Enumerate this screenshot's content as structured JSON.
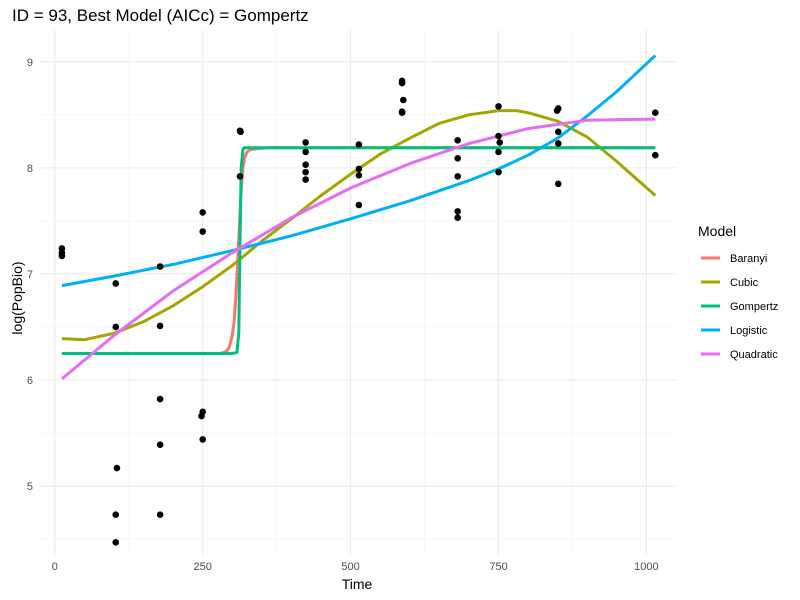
{
  "chart_data": {
    "type": "scatter",
    "title": "ID = 93, Best Model (AICc) = Gompertz",
    "xlabel": "Time",
    "ylabel": "log(PopBio)",
    "xlim": [
      -25,
      1050
    ],
    "ylim": [
      4.35,
      9.3
    ],
    "xticks": [
      0,
      250,
      500,
      750,
      1000
    ],
    "xtick_labels": [
      "0",
      "250",
      "500",
      "750",
      "1000"
    ],
    "yticks": [
      5,
      6,
      7,
      8,
      9
    ],
    "ytick_labels": [
      "5",
      "6",
      "7",
      "8",
      "9"
    ],
    "grid": true,
    "legend": {
      "title": "Model",
      "position": "right"
    },
    "points": [
      {
        "x": 12,
        "y": 7.24
      },
      {
        "x": 12,
        "y": 7.2
      },
      {
        "x": 12,
        "y": 7.17
      },
      {
        "x": 103,
        "y": 6.91
      },
      {
        "x": 103,
        "y": 6.5
      },
      {
        "x": 105,
        "y": 5.17
      },
      {
        "x": 103,
        "y": 4.73
      },
      {
        "x": 103,
        "y": 4.47
      },
      {
        "x": 178,
        "y": 7.07
      },
      {
        "x": 178,
        "y": 6.51
      },
      {
        "x": 178,
        "y": 5.82
      },
      {
        "x": 178,
        "y": 5.39
      },
      {
        "x": 178,
        "y": 4.73
      },
      {
        "x": 250,
        "y": 7.58
      },
      {
        "x": 250,
        "y": 7.4
      },
      {
        "x": 250,
        "y": 5.7
      },
      {
        "x": 248,
        "y": 5.66
      },
      {
        "x": 250,
        "y": 5.44
      },
      {
        "x": 313,
        "y": 8.35
      },
      {
        "x": 314,
        "y": 8.34
      },
      {
        "x": 313,
        "y": 7.92
      },
      {
        "x": 424,
        "y": 8.24
      },
      {
        "x": 424,
        "y": 8.15
      },
      {
        "x": 424,
        "y": 8.03
      },
      {
        "x": 424,
        "y": 7.96
      },
      {
        "x": 424,
        "y": 7.89
      },
      {
        "x": 514,
        "y": 8.22
      },
      {
        "x": 514,
        "y": 7.99
      },
      {
        "x": 514,
        "y": 7.93
      },
      {
        "x": 514,
        "y": 7.65
      },
      {
        "x": 587,
        "y": 8.82
      },
      {
        "x": 587,
        "y": 8.8
      },
      {
        "x": 589,
        "y": 8.64
      },
      {
        "x": 587,
        "y": 8.53
      },
      {
        "x": 587,
        "y": 8.52
      },
      {
        "x": 681,
        "y": 8.26
      },
      {
        "x": 681,
        "y": 8.09
      },
      {
        "x": 681,
        "y": 7.92
      },
      {
        "x": 681,
        "y": 7.59
      },
      {
        "x": 681,
        "y": 7.53
      },
      {
        "x": 750,
        "y": 8.58
      },
      {
        "x": 750,
        "y": 8.3
      },
      {
        "x": 752,
        "y": 8.24
      },
      {
        "x": 750,
        "y": 8.15
      },
      {
        "x": 750,
        "y": 7.96
      },
      {
        "x": 851,
        "y": 8.56
      },
      {
        "x": 849,
        "y": 8.54
      },
      {
        "x": 851,
        "y": 8.34
      },
      {
        "x": 851,
        "y": 8.23
      },
      {
        "x": 851,
        "y": 7.85
      },
      {
        "x": 1015,
        "y": 8.52
      },
      {
        "x": 1015,
        "y": 8.12
      }
    ],
    "series": [
      {
        "name": "Baranyi",
        "color": "#F8766D",
        "x": [
          12,
          100,
          200,
          260,
          280,
          290,
          295,
          300,
          303,
          306,
          309,
          312,
          315,
          318,
          321,
          325,
          330,
          340,
          360,
          400,
          600,
          800,
          1015
        ],
        "y": [
          6.25,
          6.25,
          6.25,
          6.25,
          6.25,
          6.27,
          6.31,
          6.42,
          6.55,
          6.78,
          7.1,
          7.45,
          7.8,
          8.0,
          8.1,
          8.15,
          8.17,
          8.18,
          8.19,
          8.19,
          8.19,
          8.19,
          8.19
        ]
      },
      {
        "name": "Cubic",
        "color": "#A3A500",
        "x": [
          12,
          50,
          100,
          150,
          200,
          250,
          300,
          350,
          400,
          450,
          500,
          550,
          600,
          650,
          700,
          750,
          780,
          800,
          850,
          900,
          950,
          1015
        ],
        "y": [
          6.39,
          6.38,
          6.44,
          6.55,
          6.7,
          6.88,
          7.08,
          7.31,
          7.52,
          7.74,
          7.94,
          8.13,
          8.28,
          8.42,
          8.5,
          8.54,
          8.54,
          8.52,
          8.44,
          8.29,
          8.06,
          7.74
        ]
      },
      {
        "name": "Gompertz",
        "color": "#00BF7D",
        "x": [
          12,
          100,
          200,
          300,
          308,
          311,
          313,
          315,
          318,
          320,
          400,
          600,
          800,
          1015
        ],
        "y": [
          6.25,
          6.25,
          6.25,
          6.25,
          6.26,
          6.45,
          7.3,
          8.0,
          8.17,
          8.19,
          8.19,
          8.19,
          8.19,
          8.19
        ]
      },
      {
        "name": "Logistic",
        "color": "#00B0F6",
        "x": [
          12,
          100,
          200,
          300,
          400,
          500,
          600,
          700,
          750,
          800,
          850,
          900,
          950,
          1015
        ],
        "y": [
          6.89,
          6.98,
          7.09,
          7.22,
          7.36,
          7.52,
          7.69,
          7.88,
          7.99,
          8.12,
          8.28,
          8.49,
          8.72,
          9.06
        ]
      },
      {
        "name": "Quadratic",
        "color": "#E76BF3",
        "x": [
          12,
          100,
          200,
          300,
          400,
          500,
          600,
          700,
          800,
          900,
          1015
        ],
        "y": [
          6.01,
          6.42,
          6.84,
          7.2,
          7.53,
          7.81,
          8.04,
          8.23,
          8.37,
          8.45,
          8.46
        ]
      }
    ]
  }
}
